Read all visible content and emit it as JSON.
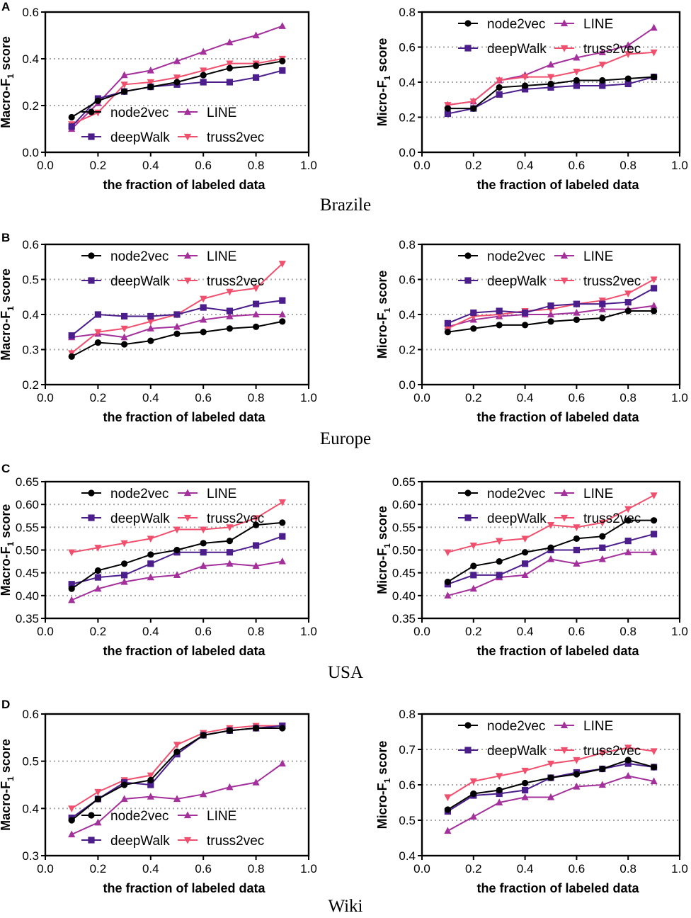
{
  "figure": {
    "rows": [
      {
        "letter": "A",
        "caption": "Brazile"
      },
      {
        "letter": "B",
        "caption": "Europe"
      },
      {
        "letter": "C",
        "caption": "USA"
      },
      {
        "letter": "D",
        "caption": "Wiki"
      }
    ]
  },
  "series_styles": {
    "node2vec": {
      "color": "#000000",
      "marker": "circle"
    },
    "deepWalk": {
      "color": "#4b1e8c",
      "marker": "square"
    },
    "LINE": {
      "color": "#a3309b",
      "marker": "triangle-up"
    },
    "truss2vec": {
      "color": "#f0506e",
      "marker": "triangle-down"
    }
  },
  "chart_data": [
    {
      "id": "brazil-macro",
      "type": "line",
      "title": "",
      "xlabel": "the fraction of labeled data",
      "ylabel": "Macro-F1 score",
      "ylabel_main": "Macro-F",
      "ylabel_sub": "1",
      "ylabel_tail": " score",
      "xlim": [
        0,
        1
      ],
      "ylim": [
        0,
        0.6
      ],
      "xticks": [
        "0.0",
        "0.2",
        "0.4",
        "0.6",
        "0.8",
        "1.0"
      ],
      "yticks": [
        "0.0",
        "0.2",
        "0.4",
        "0.6"
      ],
      "gridlines_y": [
        0.2,
        0.4
      ],
      "legend_position": "bottom-center",
      "legend_rows": [
        [
          "node2vec",
          "LINE"
        ],
        [
          "deepWalk",
          "truss2vec"
        ]
      ],
      "x": [
        0.1,
        0.2,
        0.3,
        0.4,
        0.5,
        0.6,
        0.7,
        0.8,
        0.9
      ],
      "series": [
        {
          "name": "node2vec",
          "values": [
            0.15,
            0.22,
            0.26,
            0.28,
            0.3,
            0.33,
            0.36,
            0.37,
            0.39
          ]
        },
        {
          "name": "deepWalk",
          "values": [
            0.11,
            0.23,
            0.26,
            0.28,
            0.29,
            0.3,
            0.3,
            0.32,
            0.35
          ]
        },
        {
          "name": "LINE",
          "values": [
            0.1,
            0.21,
            0.33,
            0.35,
            0.39,
            0.43,
            0.47,
            0.5,
            0.54
          ]
        },
        {
          "name": "truss2vec",
          "values": [
            0.12,
            0.17,
            0.29,
            0.3,
            0.32,
            0.35,
            0.38,
            0.38,
            0.4
          ]
        }
      ]
    },
    {
      "id": "brazil-micro",
      "type": "line",
      "title": "",
      "xlabel": "the fraction of labeled data",
      "ylabel": "Micro-F1 score",
      "ylabel_main": "Micro-F",
      "ylabel_sub": "1",
      "ylabel_tail": " score",
      "xlim": [
        0,
        1
      ],
      "ylim": [
        0,
        0.8
      ],
      "xticks": [
        "0.0",
        "0.2",
        "0.4",
        "0.6",
        "0.8",
        "1.0"
      ],
      "yticks": [
        "0.0",
        "0.2",
        "0.4",
        "0.6",
        "0.8"
      ],
      "gridlines_y": [
        0.2,
        0.4,
        0.6
      ],
      "legend_position": "top-center",
      "legend_rows": [
        [
          "node2vec",
          "LINE"
        ],
        [
          "deepWalk",
          "truss2vec"
        ]
      ],
      "x": [
        0.1,
        0.2,
        0.3,
        0.4,
        0.5,
        0.6,
        0.7,
        0.8,
        0.9
      ],
      "series": [
        {
          "name": "node2vec",
          "values": [
            0.25,
            0.25,
            0.37,
            0.38,
            0.39,
            0.41,
            0.41,
            0.42,
            0.43
          ]
        },
        {
          "name": "deepWalk",
          "values": [
            0.22,
            0.25,
            0.33,
            0.36,
            0.37,
            0.38,
            0.38,
            0.39,
            0.43
          ]
        },
        {
          "name": "LINE",
          "values": [
            0.27,
            0.29,
            0.41,
            0.44,
            0.5,
            0.54,
            0.57,
            0.61,
            0.71
          ]
        },
        {
          "name": "truss2vec",
          "values": [
            0.27,
            0.29,
            0.41,
            0.43,
            0.43,
            0.46,
            0.5,
            0.56,
            0.57
          ]
        }
      ]
    },
    {
      "id": "europe-macro",
      "type": "line",
      "title": "",
      "xlabel": "the fraction of labeled data",
      "ylabel": "Macro-F1 score",
      "ylabel_main": "Macro-F",
      "ylabel_sub": "1",
      "ylabel_tail": " score",
      "xlim": [
        0,
        1
      ],
      "ylim": [
        0.2,
        0.6
      ],
      "xticks": [
        "0.0",
        "0.2",
        "0.4",
        "0.6",
        "0.8",
        "1.0"
      ],
      "yticks": [
        "0.2",
        "0.3",
        "0.4",
        "0.5",
        "0.6"
      ],
      "gridlines_y": [
        0.3,
        0.4,
        0.5
      ],
      "legend_position": "top-center",
      "legend_rows": [
        [
          "node2vec",
          "LINE"
        ],
        [
          "deepWalk",
          "truss2vec"
        ]
      ],
      "x": [
        0.1,
        0.2,
        0.3,
        0.4,
        0.5,
        0.6,
        0.7,
        0.8,
        0.9
      ],
      "series": [
        {
          "name": "node2vec",
          "values": [
            0.28,
            0.32,
            0.315,
            0.325,
            0.345,
            0.35,
            0.36,
            0.365,
            0.38
          ]
        },
        {
          "name": "deepWalk",
          "values": [
            0.34,
            0.4,
            0.395,
            0.395,
            0.4,
            0.42,
            0.41,
            0.43,
            0.44
          ]
        },
        {
          "name": "LINE",
          "values": [
            0.335,
            0.345,
            0.335,
            0.36,
            0.365,
            0.385,
            0.395,
            0.4,
            0.4
          ]
        },
        {
          "name": "truss2vec",
          "values": [
            0.29,
            0.35,
            0.36,
            0.38,
            0.4,
            0.445,
            0.465,
            0.475,
            0.545
          ]
        }
      ]
    },
    {
      "id": "europe-micro",
      "type": "line",
      "title": "",
      "xlabel": "the fraction of labeled data",
      "ylabel": "Micro-F1 score",
      "ylabel_main": "Micro-F",
      "ylabel_sub": "1",
      "ylabel_tail": " score",
      "xlim": [
        0,
        1
      ],
      "ylim": [
        0,
        0.8
      ],
      "xticks": [
        "0.0",
        "0.2",
        "0.4",
        "0.6",
        "0.8",
        "1.0"
      ],
      "yticks": [
        "0.0",
        "0.2",
        "0.4",
        "0.6",
        "0.8"
      ],
      "gridlines_y": [
        0.2,
        0.4,
        0.6
      ],
      "legend_position": "top-center",
      "legend_rows": [
        [
          "node2vec",
          "LINE"
        ],
        [
          "deepWalk",
          "truss2vec"
        ]
      ],
      "x": [
        0.1,
        0.2,
        0.3,
        0.4,
        0.5,
        0.6,
        0.7,
        0.8,
        0.9
      ],
      "series": [
        {
          "name": "node2vec",
          "values": [
            0.3,
            0.32,
            0.34,
            0.34,
            0.36,
            0.37,
            0.38,
            0.42,
            0.42
          ]
        },
        {
          "name": "deepWalk",
          "values": [
            0.35,
            0.41,
            0.42,
            0.41,
            0.45,
            0.46,
            0.46,
            0.47,
            0.55
          ]
        },
        {
          "name": "LINE",
          "values": [
            0.33,
            0.37,
            0.39,
            0.4,
            0.4,
            0.41,
            0.43,
            0.43,
            0.45
          ]
        },
        {
          "name": "truss2vec",
          "values": [
            0.32,
            0.39,
            0.4,
            0.42,
            0.43,
            0.46,
            0.48,
            0.52,
            0.6
          ]
        }
      ]
    },
    {
      "id": "usa-macro",
      "type": "line",
      "title": "",
      "xlabel": "the fraction of labeled data",
      "ylabel": "Macro-F1 score",
      "ylabel_main": "Macro-F",
      "ylabel_sub": "1",
      "ylabel_tail": " score",
      "xlim": [
        0,
        1
      ],
      "ylim": [
        0.35,
        0.65
      ],
      "xticks": [
        "0.0",
        "0.2",
        "0.4",
        "0.6",
        "0.8",
        "1.0"
      ],
      "yticks": [
        "0.35",
        "0.40",
        "0.45",
        "0.50",
        "0.55",
        "0.60",
        "0.65"
      ],
      "gridlines_y": [
        0.4,
        0.45,
        0.5,
        0.55,
        0.6
      ],
      "legend_position": "top-center",
      "legend_rows": [
        [
          "node2vec",
          "LINE"
        ],
        [
          "deepWalk",
          "truss2vec"
        ]
      ],
      "x": [
        0.1,
        0.2,
        0.3,
        0.4,
        0.5,
        0.6,
        0.7,
        0.8,
        0.9
      ],
      "series": [
        {
          "name": "node2vec",
          "values": [
            0.415,
            0.455,
            0.47,
            0.49,
            0.5,
            0.515,
            0.52,
            0.555,
            0.56
          ]
        },
        {
          "name": "deepWalk",
          "values": [
            0.425,
            0.44,
            0.445,
            0.47,
            0.495,
            0.495,
            0.495,
            0.51,
            0.53
          ]
        },
        {
          "name": "LINE",
          "values": [
            0.39,
            0.415,
            0.43,
            0.44,
            0.445,
            0.465,
            0.47,
            0.465,
            0.475
          ]
        },
        {
          "name": "truss2vec",
          "values": [
            0.495,
            0.505,
            0.515,
            0.525,
            0.545,
            0.545,
            0.55,
            0.57,
            0.605
          ]
        }
      ]
    },
    {
      "id": "usa-micro",
      "type": "line",
      "title": "",
      "xlabel": "the fraction of labeled data",
      "ylabel": "Micro-F1 score",
      "ylabel_main": "Micro-F",
      "ylabel_sub": "1",
      "ylabel_tail": " score",
      "xlim": [
        0,
        1
      ],
      "ylim": [
        0.35,
        0.65
      ],
      "xticks": [
        "0.0",
        "0.2",
        "0.4",
        "0.6",
        "0.8",
        "1.0"
      ],
      "yticks": [
        "0.35",
        "0.40",
        "0.45",
        "0.50",
        "0.55",
        "0.60",
        "0.65"
      ],
      "gridlines_y": [
        0.4,
        0.45,
        0.5,
        0.55,
        0.6
      ],
      "legend_position": "top-center",
      "legend_rows": [
        [
          "node2vec",
          "LINE"
        ],
        [
          "deepWalk",
          "truss2vec"
        ]
      ],
      "x": [
        0.1,
        0.2,
        0.3,
        0.4,
        0.5,
        0.6,
        0.7,
        0.8,
        0.9
      ],
      "series": [
        {
          "name": "node2vec",
          "values": [
            0.43,
            0.465,
            0.475,
            0.495,
            0.505,
            0.525,
            0.53,
            0.565,
            0.565
          ]
        },
        {
          "name": "deepWalk",
          "values": [
            0.425,
            0.445,
            0.445,
            0.47,
            0.5,
            0.5,
            0.505,
            0.52,
            0.535
          ]
        },
        {
          "name": "LINE",
          "values": [
            0.4,
            0.415,
            0.44,
            0.445,
            0.48,
            0.47,
            0.48,
            0.495,
            0.495
          ]
        },
        {
          "name": "truss2vec",
          "values": [
            0.495,
            0.51,
            0.52,
            0.525,
            0.555,
            0.55,
            0.56,
            0.59,
            0.62
          ]
        }
      ]
    },
    {
      "id": "wiki-macro",
      "type": "line",
      "title": "",
      "xlabel": "the fraction of labeled data",
      "ylabel": "Macro-F1 score",
      "ylabel_main": "Macro-F",
      "ylabel_sub": "1",
      "ylabel_tail": " score",
      "xlim": [
        0,
        1
      ],
      "ylim": [
        0.3,
        0.6
      ],
      "xticks": [
        "0.0",
        "0.2",
        "0.4",
        "0.6",
        "0.8",
        "1.0"
      ],
      "yticks": [
        "0.3",
        "0.4",
        "0.5",
        "0.6"
      ],
      "gridlines_y": [
        0.4,
        0.5
      ],
      "legend_position": "bottom-center",
      "legend_rows": [
        [
          "node2vec",
          "LINE"
        ],
        [
          "deepWalk",
          "truss2vec"
        ]
      ],
      "x": [
        0.1,
        0.2,
        0.3,
        0.4,
        0.5,
        0.6,
        0.7,
        0.8,
        0.9
      ],
      "series": [
        {
          "name": "node2vec",
          "values": [
            0.375,
            0.42,
            0.45,
            0.46,
            0.52,
            0.555,
            0.565,
            0.57,
            0.57
          ]
        },
        {
          "name": "deepWalk",
          "values": [
            0.38,
            0.42,
            0.455,
            0.45,
            0.515,
            0.555,
            0.565,
            0.57,
            0.575
          ]
        },
        {
          "name": "LINE",
          "values": [
            0.345,
            0.37,
            0.42,
            0.425,
            0.42,
            0.43,
            0.445,
            0.455,
            0.495
          ]
        },
        {
          "name": "truss2vec",
          "values": [
            0.4,
            0.435,
            0.46,
            0.47,
            0.535,
            0.56,
            0.57,
            0.575,
            0.575
          ]
        }
      ]
    },
    {
      "id": "wiki-micro",
      "type": "line",
      "title": "",
      "xlabel": "the fraction of labeled data",
      "ylabel": "Micro-F1 score",
      "ylabel_main": "Micro-F",
      "ylabel_sub": "1",
      "ylabel_tail": " score",
      "xlim": [
        0,
        1
      ],
      "ylim": [
        0.4,
        0.8
      ],
      "xticks": [
        "0.0",
        "0.2",
        "0.4",
        "0.6",
        "0.8",
        "1.0"
      ],
      "yticks": [
        "0.4",
        "0.5",
        "0.6",
        "0.7",
        "0.8"
      ],
      "gridlines_y": [
        0.5,
        0.6,
        0.7
      ],
      "legend_position": "top-center",
      "legend_rows": [
        [
          "node2vec",
          "LINE"
        ],
        [
          "deepWalk",
          "truss2vec"
        ]
      ],
      "x": [
        0.1,
        0.2,
        0.3,
        0.4,
        0.5,
        0.6,
        0.7,
        0.8,
        0.9
      ],
      "series": [
        {
          "name": "node2vec",
          "values": [
            0.53,
            0.575,
            0.585,
            0.605,
            0.62,
            0.63,
            0.645,
            0.67,
            0.65
          ]
        },
        {
          "name": "deepWalk",
          "values": [
            0.525,
            0.57,
            0.575,
            0.585,
            0.62,
            0.635,
            0.645,
            0.66,
            0.65
          ]
        },
        {
          "name": "LINE",
          "values": [
            0.47,
            0.51,
            0.55,
            0.565,
            0.565,
            0.595,
            0.6,
            0.625,
            0.61
          ]
        },
        {
          "name": "truss2vec",
          "values": [
            0.565,
            0.61,
            0.625,
            0.64,
            0.66,
            0.67,
            0.69,
            0.705,
            0.695
          ]
        }
      ]
    }
  ]
}
